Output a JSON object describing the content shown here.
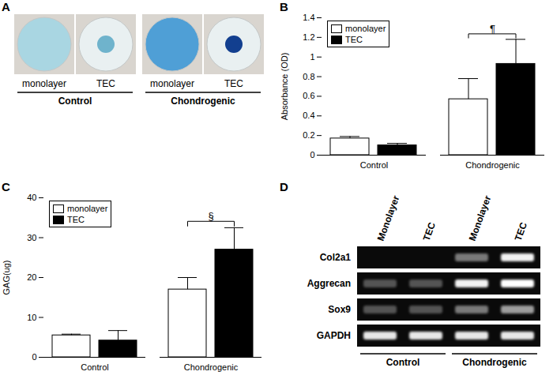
{
  "panel_a": {
    "title": "A",
    "groups": [
      {
        "label": "Control",
        "lanes": [
          {
            "label": "monolayer",
            "marker": "well",
            "color": "#a9d6e2"
          },
          {
            "label": "TEC",
            "marker": "pellet",
            "color": "#6fb3cc"
          }
        ]
      },
      {
        "label": "Chondrogenic",
        "lanes": [
          {
            "label": "monolayer",
            "marker": "well",
            "color": "#4f9fd6"
          },
          {
            "label": "TEC",
            "marker": "pellet",
            "color": "#123f8f"
          }
        ]
      }
    ]
  },
  "chart_data": [
    {
      "type": "bar",
      "title": "B",
      "y_label": "Absorbance (OD)",
      "categories": [
        "Control",
        "Chondrogenic"
      ],
      "series": [
        {
          "name": "monolayer",
          "color": "#ffffff",
          "values": [
            0.17,
            0.57
          ],
          "errors": [
            0.02,
            0.21
          ]
        },
        {
          "name": "TEC",
          "color": "#000000",
          "values": [
            0.1,
            0.93
          ],
          "errors": [
            0.02,
            0.25
          ]
        }
      ],
      "ylim": [
        0,
        1.4
      ],
      "yticks": [
        0,
        0.2,
        0.4,
        0.6,
        0.8,
        1,
        1.2,
        1.4
      ],
      "legend": "top-left",
      "annotations": [
        {
          "text": "¶",
          "category": "Chondrogenic",
          "between": [
            "monolayer",
            "TEC"
          ]
        }
      ]
    },
    {
      "type": "bar",
      "title": "C",
      "y_label": "GAG(ug)",
      "categories": [
        "Control",
        "Chondrogenic"
      ],
      "series": [
        {
          "name": "monolayer",
          "color": "#ffffff",
          "values": [
            5.5,
            17
          ],
          "errors": [
            0.3,
            3
          ]
        },
        {
          "name": "TEC",
          "color": "#000000",
          "values": [
            4.2,
            27
          ],
          "errors": [
            2.5,
            5.5
          ]
        }
      ],
      "ylim": [
        0,
        40
      ],
      "yticks": [
        0,
        10,
        20,
        30,
        40
      ],
      "legend": "top-left",
      "annotations": [
        {
          "text": "§",
          "category": "Chondrogenic",
          "between": [
            "monolayer",
            "TEC"
          ]
        }
      ]
    }
  ],
  "panel_d": {
    "title": "D",
    "groups": [
      {
        "label": "Control",
        "lanes": [
          "Monolayer",
          "TEC"
        ]
      },
      {
        "label": "Chondrogenic",
        "lanes": [
          "Monolayer",
          "TEC"
        ]
      }
    ],
    "genes": [
      {
        "label": "Col2a1",
        "intensity": [
          0,
          0,
          0.45,
          0.95
        ]
      },
      {
        "label": "Aggrecan",
        "intensity": [
          0.3,
          0.3,
          0.95,
          1
        ]
      },
      {
        "label": "Sox9",
        "intensity": [
          0.3,
          0.3,
          0.45,
          0.6
        ]
      },
      {
        "label": "GAPDH",
        "intensity": [
          0.9,
          0.9,
          0.9,
          0.9
        ]
      }
    ]
  }
}
